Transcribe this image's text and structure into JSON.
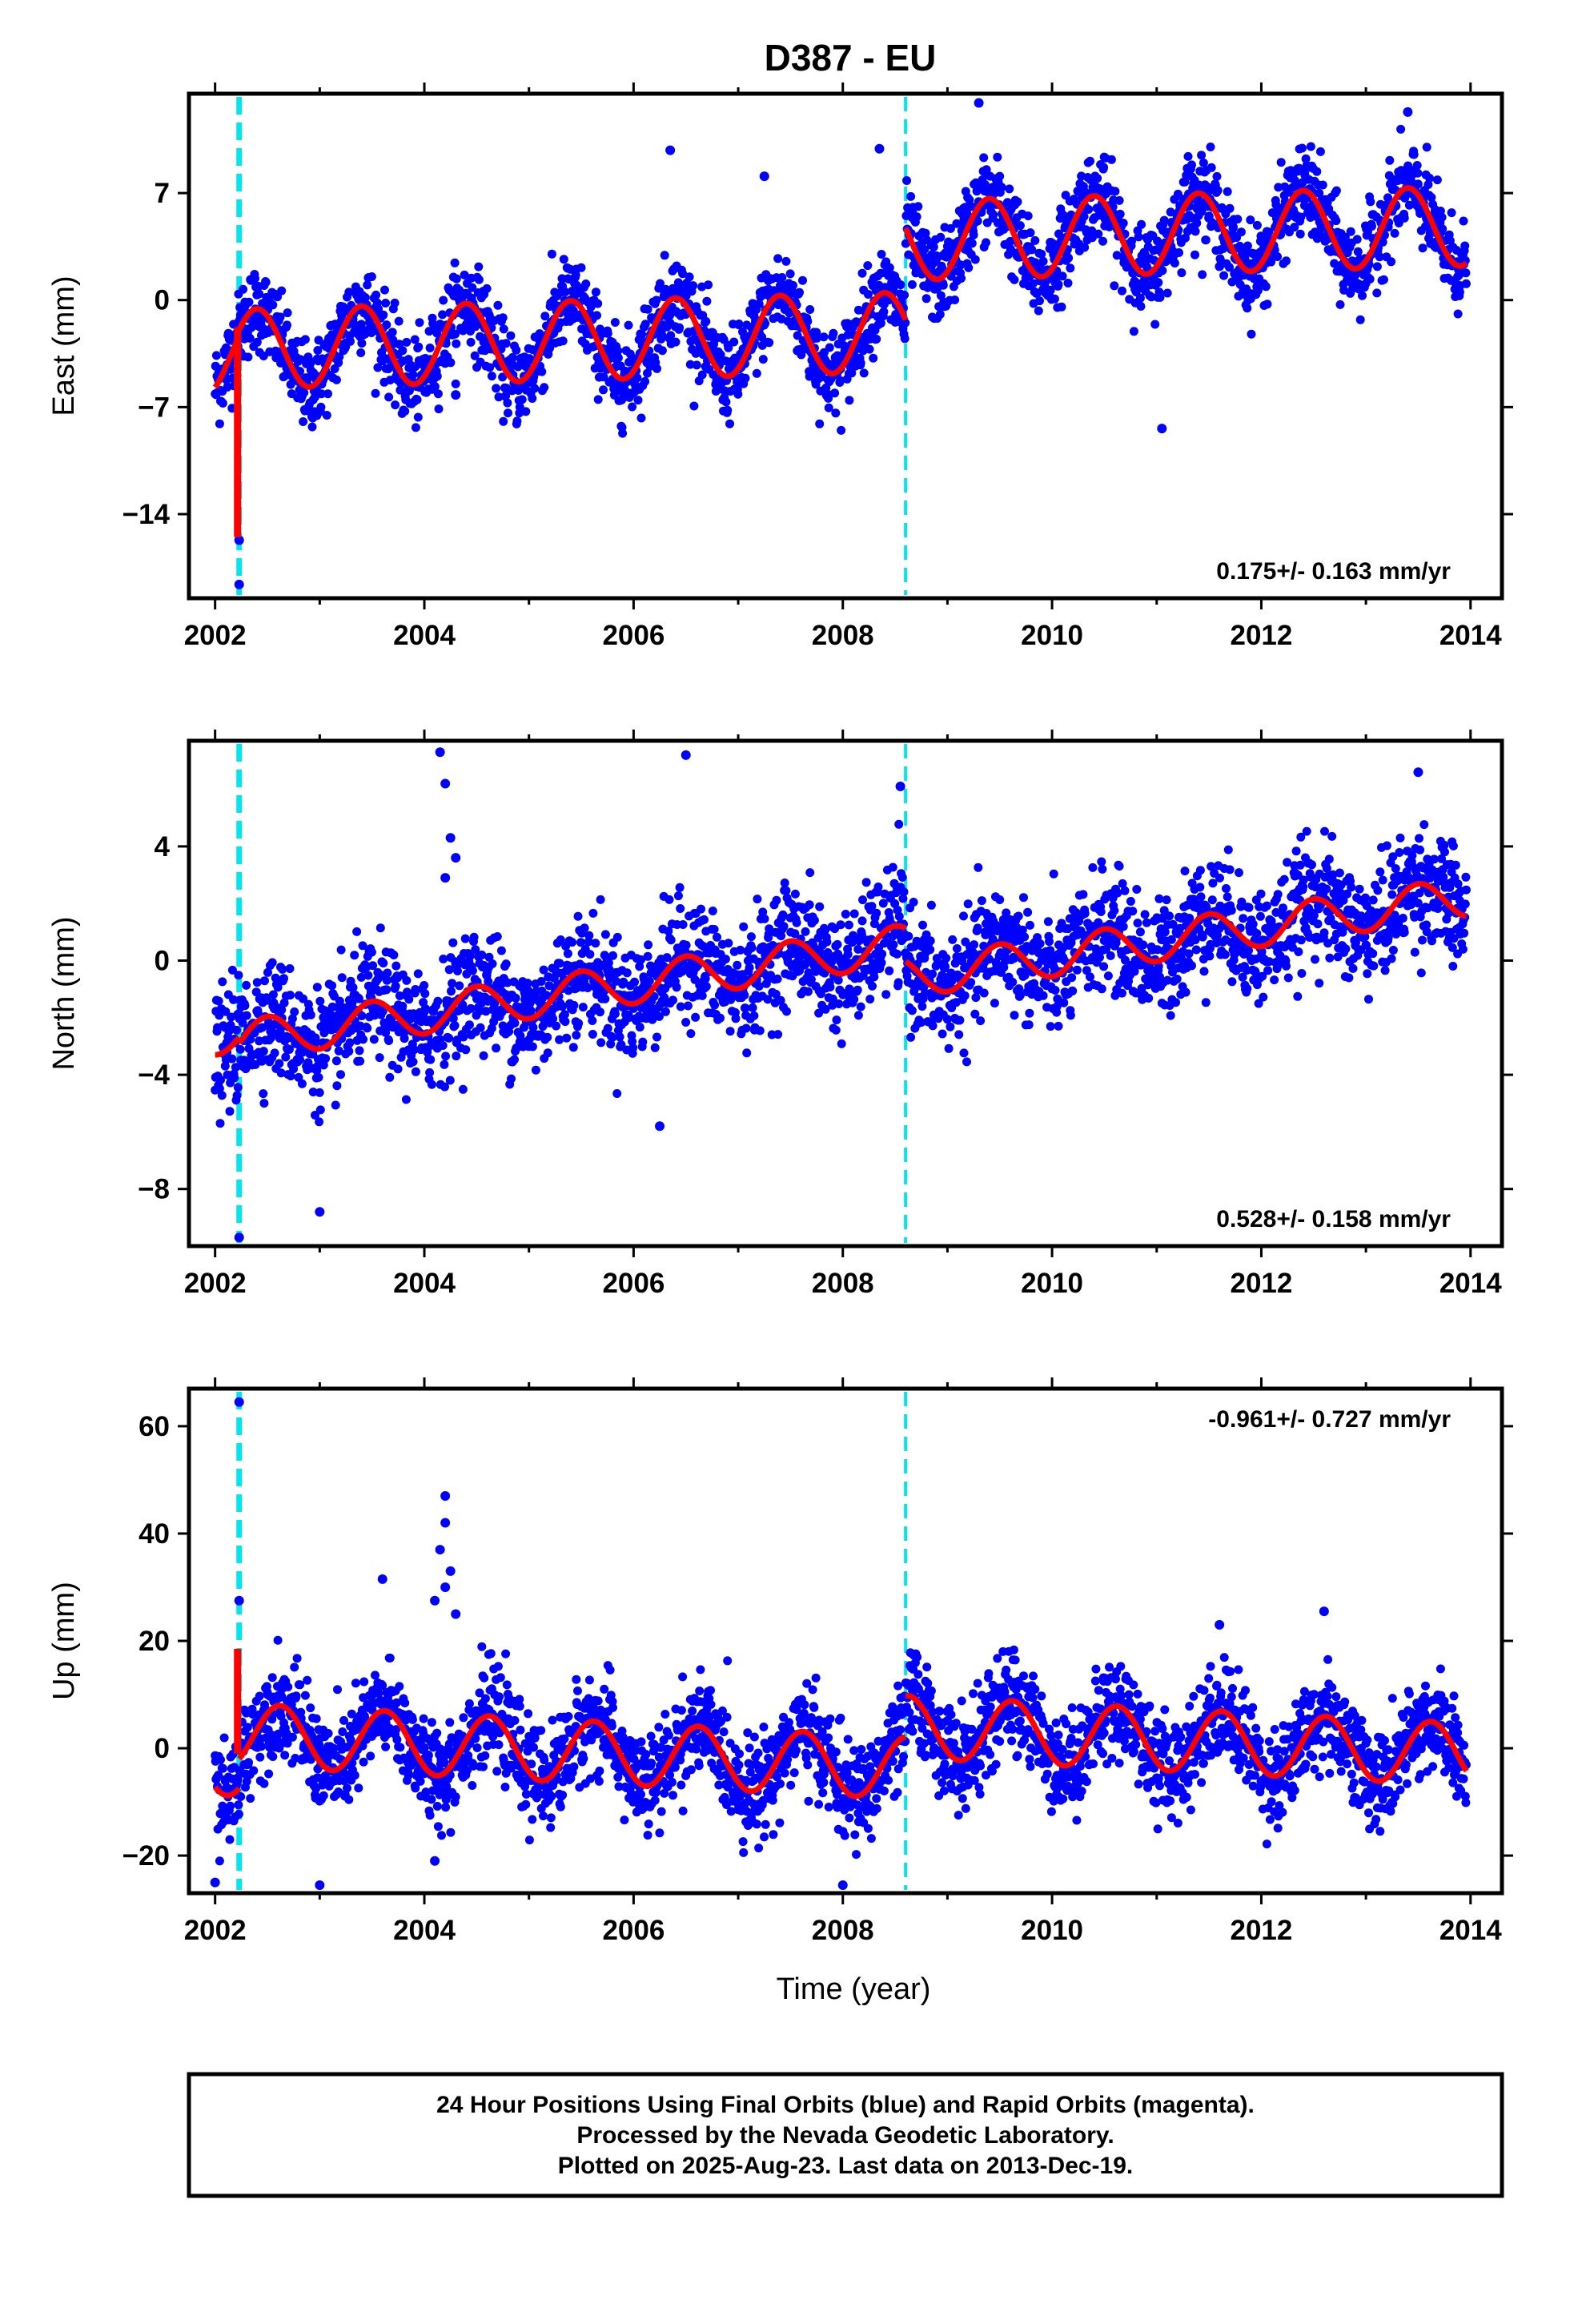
{
  "figure": {
    "title": "D387 - EU",
    "footer_lines": [
      "24 Hour Positions Using Final Orbits (blue) and Rapid Orbits (magenta).",
      "Processed by the Nevada Geodetic Laboratory.",
      "Plotted on 2025-Aug-23. Last data on 2013-Dec-19."
    ]
  },
  "colors": {
    "final_orbit_points": "#0000ff",
    "model_fit": "#ff0000",
    "event_marker": "#00e5ee",
    "frame": "#000000"
  },
  "chart_data": [
    {
      "type": "scatter",
      "component": "East",
      "ylabel": "East (mm)",
      "xlabel": "",
      "xlim": [
        2001.75,
        2014.3
      ],
      "ylim": [
        -19.5,
        13.5
      ],
      "yticks": [
        7,
        0,
        -7,
        -14
      ],
      "ytick_labels": [
        "7",
        "0",
        "−7",
        "−14"
      ],
      "xticks": [
        2002,
        2004,
        2006,
        2008,
        2010,
        2012,
        2014
      ],
      "grid": false,
      "rate_label": "0.175+/- 0.163 mm/yr",
      "rate_label_position": "bottom-right",
      "data_start": 2002.0,
      "data_end": 2013.96,
      "event_lines": [
        2002.23,
        2008.6
      ],
      "model_segments": [
        {
          "x_start": 2002.0,
          "x_end": 2002.23,
          "offset": -3.6,
          "trend": 0.0
        },
        {
          "x_start": 2002.23,
          "x_end": 2008.6,
          "offset": -3.2,
          "trend": 0.175
        },
        {
          "x_start": 2008.6,
          "x_end": 2013.96,
          "offset": 3.9,
          "trend": 0.175
        }
      ],
      "seasonal_amplitude": 2.6,
      "seasonal_phase_year": 0.4,
      "scatter_sd": 1.4,
      "outliers": [
        [
          2002.23,
          -18.6
        ],
        [
          2002.23,
          -15.7
        ],
        [
          2006.35,
          9.8
        ],
        [
          2007.25,
          8.1
        ],
        [
          2009.3,
          12.9
        ],
        [
          2011.05,
          -8.4
        ],
        [
          2013.4,
          12.3
        ],
        [
          2008.35,
          9.9
        ],
        [
          2004.3,
          -6.2
        ]
      ],
      "spike": {
        "x": 2002.23,
        "from": -1.8,
        "to": -15.5
      }
    },
    {
      "type": "scatter",
      "component": "North",
      "ylabel": "North (mm)",
      "xlabel": "",
      "xlim": [
        2001.75,
        2014.3
      ],
      "ylim": [
        -10.0,
        7.7
      ],
      "yticks": [
        4,
        0,
        -4,
        -8
      ],
      "ytick_labels": [
        "4",
        "0",
        "−4",
        "−8"
      ],
      "xticks": [
        2002,
        2004,
        2006,
        2008,
        2010,
        2012,
        2014
      ],
      "grid": false,
      "rate_label": "0.528+/- 0.158 mm/yr",
      "rate_label_position": "bottom-right",
      "data_start": 2002.0,
      "data_end": 2013.96,
      "event_lines": [
        2002.23,
        2008.6
      ],
      "model_segments": [
        {
          "x_start": 2002.0,
          "x_end": 2002.23,
          "offset": -2.6,
          "trend": 0.0
        },
        {
          "x_start": 2002.23,
          "x_end": 2008.6,
          "offset": -2.8,
          "trend": 0.528
        },
        {
          "x_start": 2008.6,
          "x_end": 2013.96,
          "offset": -0.6,
          "trend": 0.528
        }
      ],
      "seasonal_amplitude": 0.7,
      "seasonal_phase_year": 0.5,
      "scatter_sd": 1.0,
      "outliers": [
        [
          2002.23,
          -9.7
        ],
        [
          2004.15,
          7.3
        ],
        [
          2004.2,
          6.2
        ],
        [
          2004.25,
          4.3
        ],
        [
          2004.3,
          3.6
        ],
        [
          2004.2,
          2.9
        ],
        [
          2006.5,
          7.2
        ],
        [
          2008.55,
          6.1
        ],
        [
          2003.0,
          -8.8
        ],
        [
          2013.5,
          6.6
        ],
        [
          2006.25,
          -5.8
        ]
      ],
      "spike": null
    },
    {
      "type": "scatter",
      "component": "Up",
      "ylabel": "Up (mm)",
      "xlabel": "Time (year)",
      "xlim": [
        2001.75,
        2014.3
      ],
      "ylim": [
        -27.0,
        67.0
      ],
      "yticks": [
        60,
        40,
        20,
        0,
        -20
      ],
      "ytick_labels": [
        "60",
        "40",
        "20",
        "0",
        "−20"
      ],
      "xticks": [
        2002,
        2004,
        2006,
        2008,
        2010,
        2012,
        2014
      ],
      "grid": false,
      "rate_label": "-0.961+/- 0.727 mm/yr",
      "rate_label_position": "top-right",
      "data_start": 2002.0,
      "data_end": 2013.96,
      "event_lines": [
        2002.23,
        2008.6
      ],
      "model_segments": [
        {
          "x_start": 2002.0,
          "x_end": 2002.23,
          "offset": -3.0,
          "trend": 0.0
        },
        {
          "x_start": 2002.23,
          "x_end": 2008.6,
          "offset": 2.5,
          "trend": -0.961
        },
        {
          "x_start": 2008.6,
          "x_end": 2013.96,
          "offset": 4.0,
          "trend": -0.961
        }
      ],
      "seasonal_amplitude": 5.8,
      "seasonal_phase_year": 0.62,
      "scatter_sd": 4.5,
      "outliers": [
        [
          2002.23,
          64.5
        ],
        [
          2002.23,
          27.5
        ],
        [
          2004.2,
          47.0
        ],
        [
          2004.2,
          42.0
        ],
        [
          2004.15,
          37.0
        ],
        [
          2004.25,
          33.0
        ],
        [
          2004.2,
          30.0
        ],
        [
          2004.1,
          27.5
        ],
        [
          2004.3,
          25.0
        ],
        [
          2003.6,
          31.5
        ],
        [
          2002.0,
          -25.0
        ],
        [
          2003.0,
          -25.5
        ],
        [
          2004.1,
          -21.0
        ],
        [
          2008.0,
          -25.5
        ],
        [
          2012.6,
          25.5
        ],
        [
          2011.6,
          23.0
        ]
      ],
      "spike": {
        "x": 2002.23,
        "from": -1.0,
        "to": 18.5
      }
    }
  ]
}
